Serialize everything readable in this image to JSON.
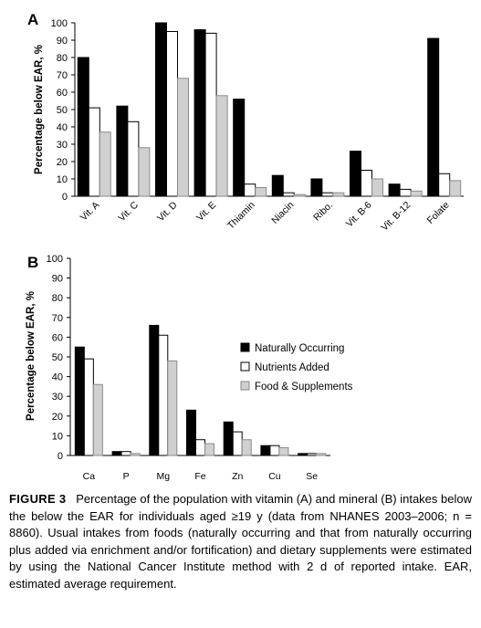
{
  "colors": {
    "naturally": "#000000",
    "added": "#ffffff",
    "food_supp": "#d0d0d0",
    "axis": "#000000"
  },
  "chart_data": [
    {
      "panel": "A",
      "type": "bar",
      "ylabel": "Percentage below EAR, %",
      "ylim": [
        0,
        100
      ],
      "yticks": [
        0,
        10,
        20,
        30,
        40,
        50,
        60,
        70,
        80,
        90,
        100
      ],
      "categories": [
        "Vit. A",
        "Vit. C",
        "Vit. D",
        "Vit. E",
        "Thiamin",
        "Niacin",
        "Ribo.",
        "Vit. B-6",
        "Vit. B-12",
        "Folate"
      ],
      "series": [
        {
          "name": "Naturally Occurring",
          "values": [
            80,
            52,
            100,
            96,
            56,
            12,
            10,
            26,
            7,
            91
          ]
        },
        {
          "name": "Nutrients Added",
          "values": [
            51,
            43,
            95,
            94,
            7,
            2,
            2,
            15,
            4,
            13
          ]
        },
        {
          "name": "Food & Supplements",
          "values": [
            37,
            28,
            68,
            58,
            5,
            1,
            2,
            10,
            3,
            9
          ]
        }
      ]
    },
    {
      "panel": "B",
      "type": "bar",
      "ylabel": "Percentage below EAR, %",
      "ylim": [
        0,
        100
      ],
      "yticks": [
        0,
        10,
        20,
        30,
        40,
        50,
        60,
        70,
        80,
        90,
        100
      ],
      "categories": [
        "Ca",
        "P",
        "Mg",
        "Fe",
        "Zn",
        "Cu",
        "Se"
      ],
      "series": [
        {
          "name": "Naturally Occurring",
          "values": [
            55,
            2,
            66,
            23,
            17,
            5,
            1
          ]
        },
        {
          "name": "Nutrients Added",
          "values": [
            49,
            2,
            61,
            8,
            12,
            5,
            1
          ]
        },
        {
          "name": "Food & Supplements",
          "values": [
            36,
            1,
            48,
            6,
            8,
            4,
            1
          ]
        }
      ],
      "legend": {
        "placement": "center-right",
        "entries": [
          "Naturally Occurring",
          "Nutrients Added",
          "Food & Supplements"
        ]
      }
    }
  ],
  "caption": {
    "label": "FIGURE 3",
    "text": "Percentage of the population with vitamin (A) and mineral (B) intakes below the below the EAR for individuals aged ≥19 y (data from NHANES 2003–2006; n = 8860). Usual intakes from foods (naturally occurring and that from naturally occurring plus added via enrichment and/or fortification) and dietary supplements were estimated by using the National Cancer Institute method with 2 d of reported intake. EAR, estimated average requirement."
  }
}
